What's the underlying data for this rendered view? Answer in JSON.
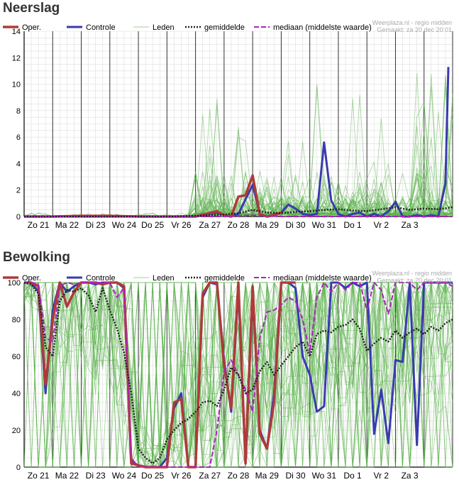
{
  "colors": {
    "oper": "#b03a3a",
    "controle": "#3a3ab0",
    "leden": "#5ab04a",
    "gemiddelde": "#222222",
    "mediaan": "#b020c0",
    "grid_day": "#333333",
    "grid_minor": "#dddddd",
    "credit": "#aaaaaa"
  },
  "chart_data": [
    {
      "type": "line",
      "title": "Neerslag",
      "credit": [
        "Weerplaza.nl - regio midden",
        "Gemaakt: za 20 dec 20:01"
      ],
      "legend": [
        "Oper.",
        "Controle",
        "Leden",
        "gemiddelde",
        "mediaan (middelste waarde)"
      ],
      "legend_position": "top",
      "x_ticks": [
        "Zo 21",
        "Ma 22",
        "Di 23",
        "Wo 24",
        "Do 25",
        "Vr 26",
        "Za 27",
        "Zo 28",
        "Ma 29",
        "Di 30",
        "Wo 31",
        "Do 1",
        "Vr 2",
        "Za 3"
      ],
      "xlim": [
        0,
        15
      ],
      "ylim": [
        0,
        14
      ],
      "y_ticks": [
        0,
        2,
        4,
        6,
        8,
        10,
        12,
        14
      ],
      "grid": true,
      "series": [
        {
          "name": "Oper.",
          "x": [
            0,
            1,
            2,
            3,
            4,
            5,
            6,
            6.75,
            7,
            7.25,
            7.5,
            7.75,
            8,
            8.25,
            8.5,
            8.75,
            9
          ],
          "y": [
            0,
            0,
            0.05,
            0.05,
            0,
            0,
            0,
            0.4,
            0.1,
            0,
            1.5,
            1.6,
            3.1,
            0.2,
            0,
            0.1,
            0.3
          ]
        },
        {
          "name": "Controle",
          "x": [
            0,
            1,
            2,
            3,
            4,
            5,
            6,
            6.75,
            7,
            7.25,
            7.5,
            7.75,
            8,
            8.25,
            8.5,
            9,
            9.25,
            9.5,
            9.75,
            10,
            10.25,
            10.5,
            10.75,
            11,
            11.25,
            11.5,
            11.75,
            12,
            12.25,
            12.5,
            12.75,
            13,
            13.25,
            13.5,
            13.75,
            14,
            14.25,
            14.5,
            14.75,
            14.85
          ],
          "y": [
            0,
            0,
            0,
            0,
            0,
            0,
            0,
            0.3,
            0.1,
            0,
            0.2,
            1.3,
            2.4,
            0.2,
            0,
            0.3,
            0.9,
            0.6,
            0.2,
            0.1,
            0.2,
            5.6,
            1.2,
            0.2,
            0,
            0.2,
            0.3,
            0,
            0.2,
            0,
            0.4,
            1.1,
            0,
            0,
            0.1,
            0,
            0.1,
            0,
            2.5,
            11.3
          ]
        },
        {
          "name": "gemiddelde",
          "x": [
            0,
            1,
            2,
            3,
            4,
            5,
            6,
            6.5,
            7,
            7.5,
            8,
            8.5,
            9,
            9.5,
            10,
            10.5,
            11,
            11.5,
            12,
            12.5,
            13,
            13.5,
            14,
            14.5,
            15
          ],
          "y": [
            0,
            0,
            0,
            0,
            0,
            0,
            0.05,
            0.1,
            0.15,
            0.25,
            0.5,
            0.3,
            0.25,
            0.35,
            0.4,
            0.5,
            0.55,
            0.45,
            0.4,
            0.55,
            0.7,
            0.5,
            0.6,
            0.55,
            0.7
          ]
        },
        {
          "name": "mediaan (middelste waarde)",
          "x": [
            0,
            1,
            2,
            3,
            4,
            5,
            6,
            7,
            8,
            9,
            10,
            11,
            12,
            13,
            14,
            15
          ],
          "y": [
            0,
            0,
            0,
            0,
            0,
            0,
            0,
            0,
            0.1,
            0,
            0,
            0,
            0,
            0,
            0,
            0
          ]
        }
      ]
    },
    {
      "type": "line",
      "title": "Bewolking",
      "credit": [
        "Weerplaza.nl - regio midden",
        "Gemaakt: za 20 dec 20:01"
      ],
      "legend": [
        "Oper.",
        "Controle",
        "Leden",
        "gemiddelde",
        "mediaan (middelste waarde)"
      ],
      "legend_position": "top",
      "x_ticks": [
        "Zo 21",
        "Ma 22",
        "Di 23",
        "Wo 24",
        "Do 25",
        "Vr 26",
        "Za 27",
        "Zo 28",
        "Ma 29",
        "Di 30",
        "Wo 31",
        "Do 1",
        "Vr 2",
        "Za 3"
      ],
      "xlim": [
        0,
        15
      ],
      "ylim": [
        0,
        100
      ],
      "y_ticks": [
        0,
        20,
        40,
        60,
        80,
        100
      ],
      "grid": true,
      "series": [
        {
          "name": "Oper.",
          "x": [
            0,
            0.25,
            0.5,
            0.75,
            1,
            1.25,
            1.5,
            1.75,
            2,
            2.25,
            2.5,
            2.75,
            3,
            3.25,
            3.5,
            3.75,
            4,
            4.25,
            4.5,
            4.75,
            5,
            5.25,
            5.5,
            5.75,
            6,
            6.25,
            6.5,
            6.75,
            7,
            7.25,
            7.5,
            7.75,
            8,
            8.25,
            8.5,
            8.75,
            9,
            9.25,
            9.5
          ],
          "y": [
            100,
            100,
            98,
            45,
            80,
            100,
            87,
            95,
            100,
            100,
            100,
            99,
            100,
            100,
            98,
            2,
            1,
            0,
            0,
            0,
            0,
            35,
            37,
            0,
            0,
            94,
            100,
            100,
            55,
            32,
            100,
            2,
            98,
            18,
            10,
            35,
            100,
            100,
            100
          ]
        },
        {
          "name": "Controle",
          "x": [
            0,
            0.25,
            0.5,
            0.75,
            1,
            1.25,
            1.5,
            1.75,
            2,
            2.25,
            2.5,
            2.75,
            3,
            3.25,
            3.5,
            3.75,
            4,
            4.25,
            4.5,
            4.75,
            5,
            5.25,
            5.5,
            5.75,
            6,
            6.25,
            6.5,
            6.75,
            7,
            7.25,
            7.5,
            7.75,
            8,
            8.25,
            8.5,
            8.75,
            9,
            9.25,
            9.5,
            9.75,
            10,
            10.25,
            10.5,
            10.75,
            11,
            11.25,
            11.5,
            11.75,
            12,
            12.25,
            12.5,
            12.75,
            13,
            13.25,
            13.5,
            13.75,
            14,
            14.25,
            14.5,
            14.75,
            15
          ],
          "y": [
            100,
            100,
            95,
            40,
            85,
            100,
            95,
            98,
            100,
            100,
            99,
            100,
            100,
            100,
            97,
            3,
            1,
            0,
            0,
            0,
            5,
            32,
            40,
            0,
            0,
            92,
            100,
            99,
            58,
            30,
            96,
            3,
            95,
            20,
            10,
            40,
            100,
            100,
            97,
            60,
            50,
            30,
            33,
            100,
            100,
            97,
            100,
            98,
            100,
            18,
            42,
            13,
            58,
            57,
            100,
            12,
            100,
            100,
            100,
            100,
            100
          ]
        },
        {
          "name": "gemiddelde",
          "x": [
            0,
            0.25,
            0.5,
            0.75,
            1,
            1.25,
            1.5,
            1.75,
            2,
            2.25,
            2.5,
            2.75,
            3,
            3.25,
            3.5,
            3.75,
            4,
            4.25,
            4.5,
            4.75,
            5,
            5.25,
            5.5,
            5.75,
            6,
            6.25,
            6.5,
            6.75,
            7,
            7.25,
            7.5,
            7.75,
            8,
            8.25,
            8.5,
            8.75,
            9,
            9.25,
            9.5,
            9.75,
            10,
            10.25,
            10.5,
            10.75,
            11,
            11.25,
            11.5,
            11.75,
            12,
            12.25,
            12.5,
            12.75,
            13,
            13.25,
            13.5,
            13.75,
            14,
            14.25,
            14.5,
            14.75,
            15
          ],
          "y": [
            100,
            99,
            94,
            65,
            60,
            90,
            96,
            95,
            97,
            93,
            84,
            97,
            85,
            75,
            62,
            40,
            10,
            5,
            2,
            5,
            15,
            20,
            24,
            26,
            30,
            35,
            36,
            33,
            42,
            54,
            50,
            40,
            42,
            52,
            57,
            50,
            55,
            60,
            65,
            68,
            60,
            72,
            74,
            73,
            76,
            77,
            80,
            75,
            63,
            67,
            70,
            68,
            74,
            70,
            73,
            75,
            72,
            76,
            74,
            78,
            80
          ]
        },
        {
          "name": "mediaan (middelste waarde)",
          "x": [
            0,
            0.25,
            0.5,
            0.75,
            1,
            1.25,
            1.5,
            1.75,
            2,
            2.25,
            2.5,
            2.75,
            3,
            3.25,
            3.5,
            3.75,
            4,
            4.25,
            4.5,
            4.75,
            5,
            5.25,
            5.5,
            5.75,
            6,
            6.25,
            6.5,
            6.75,
            7,
            7.25,
            7.5,
            7.75,
            8,
            8.25,
            8.5,
            8.75,
            9,
            9.25,
            9.5,
            9.75,
            10,
            10.25,
            10.5,
            10.75,
            11,
            11.25,
            11.5,
            11.75,
            12,
            12.25,
            12.5,
            12.75,
            13,
            13.25,
            13.5,
            13.75,
            14,
            14.25,
            14.5,
            14.75,
            15
          ],
          "y": [
            100,
            100,
            99,
            70,
            68,
            98,
            100,
            99,
            100,
            100,
            100,
            100,
            100,
            92,
            97,
            5,
            0,
            0,
            0,
            0,
            0,
            0,
            0,
            0,
            0,
            0,
            0,
            20,
            52,
            58,
            50,
            42,
            30,
            70,
            84,
            85,
            88,
            92,
            90,
            80,
            62,
            92,
            100,
            95,
            100,
            96,
            100,
            100,
            85,
            100,
            96,
            83,
            100,
            100,
            100,
            96,
            100,
            100,
            100,
            100,
            98
          ]
        }
      ]
    }
  ]
}
